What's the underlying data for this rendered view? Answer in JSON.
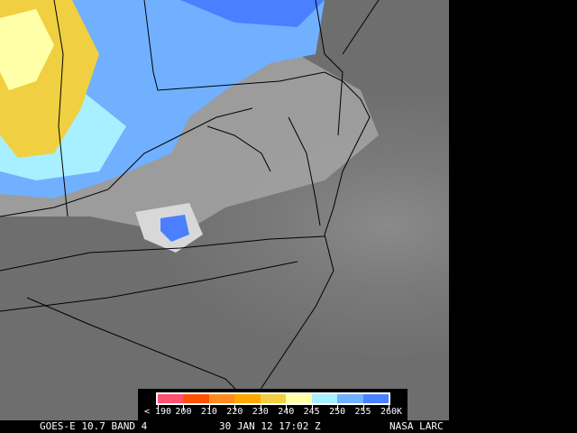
{
  "caption": {
    "satellite": "GOES-E 10.7 BAND 4",
    "datetime": "30 JAN 12 17:02 Z",
    "source": "NASA LARC"
  },
  "legend": {
    "colors": [
      "#ff5070",
      "#ff5000",
      "#ff8a20",
      "#ffa800",
      "#f0d040",
      "#ffffa8",
      "#a8f0ff",
      "#70b0ff",
      "#4a80ff"
    ],
    "ticks": [
      "< 190",
      "200",
      "210",
      "220",
      "230",
      "240",
      "245",
      "250",
      "255",
      "260"
    ],
    "unit": "K"
  }
}
